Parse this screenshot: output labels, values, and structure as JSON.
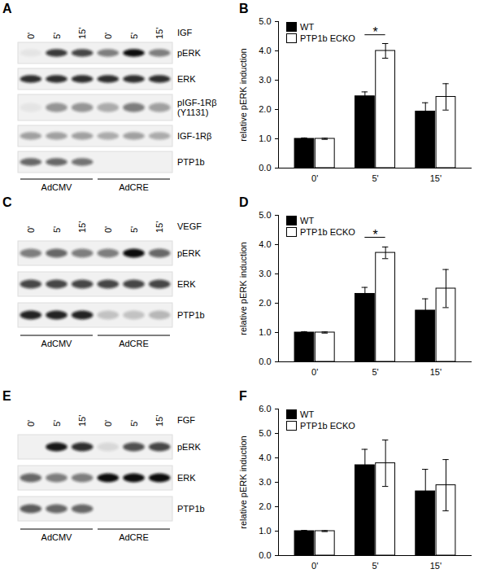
{
  "blots": [
    {
      "panel": "A",
      "treatment": "IGF",
      "lanes": [
        "0'",
        "5'",
        "15'",
        "0'",
        "5'",
        "15'"
      ],
      "groups": [
        "AdCMV",
        "AdCRE"
      ],
      "rows": [
        {
          "label": [
            "pERK"
          ],
          "bands": [
            0.05,
            0.8,
            0.75,
            0.5,
            1,
            0.5
          ]
        },
        {
          "label": [
            "ERK"
          ],
          "bands": [
            0.85,
            0.85,
            0.85,
            0.85,
            0.85,
            0.85
          ]
        },
        {
          "label": [
            "pIGF-1Rβ",
            "(Y1131)"
          ],
          "bands": [
            0.05,
            0.4,
            0.4,
            0.3,
            0.5,
            0.35
          ]
        },
        {
          "label": [
            "IGF-1Rβ"
          ],
          "bands": [
            0.35,
            0.35,
            0.35,
            0.3,
            0.35,
            0.3
          ]
        },
        {
          "label": [
            "PTP1b"
          ],
          "bands": [
            0.6,
            0.6,
            0.55,
            0,
            0,
            0
          ]
        }
      ]
    },
    {
      "panel": "C",
      "treatment": "VEGF",
      "lanes": [
        "0'",
        "5'",
        "15'",
        "0'",
        "5'",
        "15'"
      ],
      "groups": [
        "AdCMV",
        "AdCRE"
      ],
      "rows": [
        {
          "label": [
            "pERK"
          ],
          "bands": [
            0.5,
            0.6,
            0.5,
            0.5,
            1,
            0.6
          ]
        },
        {
          "label": [
            "ERK"
          ],
          "bands": [
            0.75,
            0.75,
            0.75,
            0.75,
            0.75,
            0.75
          ]
        },
        {
          "label": [
            "PTP1b"
          ],
          "bands": [
            0.9,
            0.9,
            0.9,
            0.2,
            0.2,
            0.25
          ]
        }
      ]
    },
    {
      "panel": "E",
      "treatment": "FGF",
      "lanes": [
        "0'",
        "5'",
        "15'",
        "0'",
        "5'",
        "15'"
      ],
      "groups": [
        "AdCMV",
        "AdCRE"
      ],
      "rows": [
        {
          "label": [
            "pERK"
          ],
          "bands": [
            0,
            0.95,
            0.85,
            0.1,
            0.7,
            0.75
          ]
        },
        {
          "label": [
            "ERK"
          ],
          "bands": [
            0.6,
            0.5,
            0.5,
            1,
            1,
            1
          ]
        },
        {
          "label": [
            "PTP1b"
          ],
          "bands": [
            0.65,
            0.6,
            0.6,
            0,
            0,
            0
          ]
        }
      ]
    }
  ],
  "chart_data": [
    {
      "type": "bar",
      "panel": "B",
      "y_label": "relative pERK induction",
      "categories": [
        "0'",
        "5'",
        "15'"
      ],
      "series": [
        {
          "name": "WT",
          "color": "#000000",
          "values": [
            1,
            2.45,
            1.93
          ],
          "errors": [
            0.03,
            0.15,
            0.3
          ]
        },
        {
          "name": "PTP1b ECKO",
          "color": "#ffffff",
          "values": [
            1,
            4.0,
            2.43
          ],
          "errors": [
            0.02,
            0.25,
            0.45
          ]
        }
      ],
      "ylim": [
        0,
        5
      ],
      "yticks": [
        0,
        1,
        2,
        3,
        4,
        5
      ],
      "legend": "top-left",
      "annotations": [
        {
          "category": "5'",
          "y": 4.55,
          "text": "*"
        }
      ]
    },
    {
      "type": "bar",
      "panel": "D",
      "y_label": "relative pERK induction",
      "categories": [
        "0'",
        "5'",
        "15'"
      ],
      "series": [
        {
          "name": "WT",
          "color": "#000000",
          "values": [
            1,
            2.32,
            1.75
          ],
          "errors": [
            0.03,
            0.22,
            0.4
          ]
        },
        {
          "name": "PTP1b ECKO",
          "color": "#ffffff",
          "values": [
            1,
            3.72,
            2.5
          ],
          "errors": [
            0.02,
            0.2,
            0.65
          ]
        }
      ],
      "ylim": [
        0,
        5
      ],
      "yticks": [
        0,
        1,
        2,
        3,
        4,
        5
      ],
      "legend": "top-left",
      "annotations": [
        {
          "category": "5'",
          "y": 4.25,
          "text": "*"
        }
      ]
    },
    {
      "type": "bar",
      "panel": "F",
      "y_label": "relative pERK induction",
      "categories": [
        "0'",
        "5'",
        "15'"
      ],
      "series": [
        {
          "name": "WT",
          "color": "#000000",
          "values": [
            1,
            3.7,
            2.63
          ],
          "errors": [
            0.03,
            0.65,
            0.9
          ]
        },
        {
          "name": "PTP1b ECKO",
          "color": "#ffffff",
          "values": [
            1,
            3.78,
            2.88
          ],
          "errors": [
            0.02,
            0.95,
            1.05
          ]
        }
      ],
      "ylim": [
        0,
        6
      ],
      "yticks": [
        0,
        1,
        2,
        3,
        4,
        5,
        6
      ],
      "legend": "top-left",
      "annotations": []
    }
  ]
}
